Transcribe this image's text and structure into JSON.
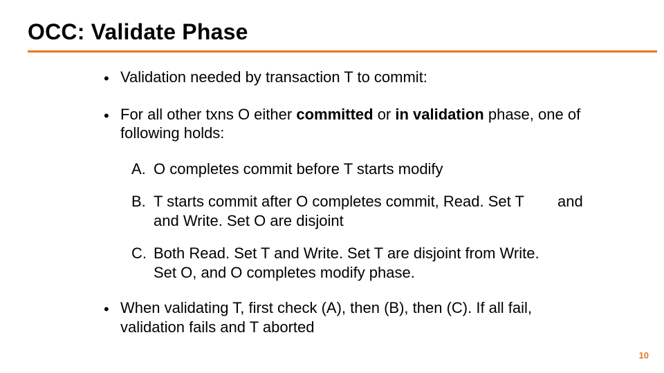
{
  "title": "OCC:  Validate Phase",
  "rule_color": "#e87722",
  "bullets": {
    "b1": "Validation needed by transaction T to commit:",
    "b2_pre": "For all other txns O either ",
    "b2_bold1": "committed",
    "b2_mid": " or ",
    "b2_bold2": "in validation",
    "b2_post": " phase, one of following holds:",
    "b3": "When validating T, first check (A), then (B), then (C). If all fail, validation fails and T aborted"
  },
  "subitems": {
    "a_marker": "A.",
    "a_text": "O completes commit before T starts modify",
    "b_marker": "B.",
    "b_text": "T starts commit after O completes commit, Read. Set T and Write. Set O are disjoint",
    "b_and": "and",
    "c_marker": "C.",
    "c_text": "Both Read. Set T and Write. Set T are disjoint from Write. Set O, and O completes modify phase."
  },
  "page_number": "10",
  "text_color": "#000000",
  "background_color": "#ffffff",
  "title_fontsize": 32,
  "body_fontsize": 22,
  "pagenum_fontsize": 13
}
